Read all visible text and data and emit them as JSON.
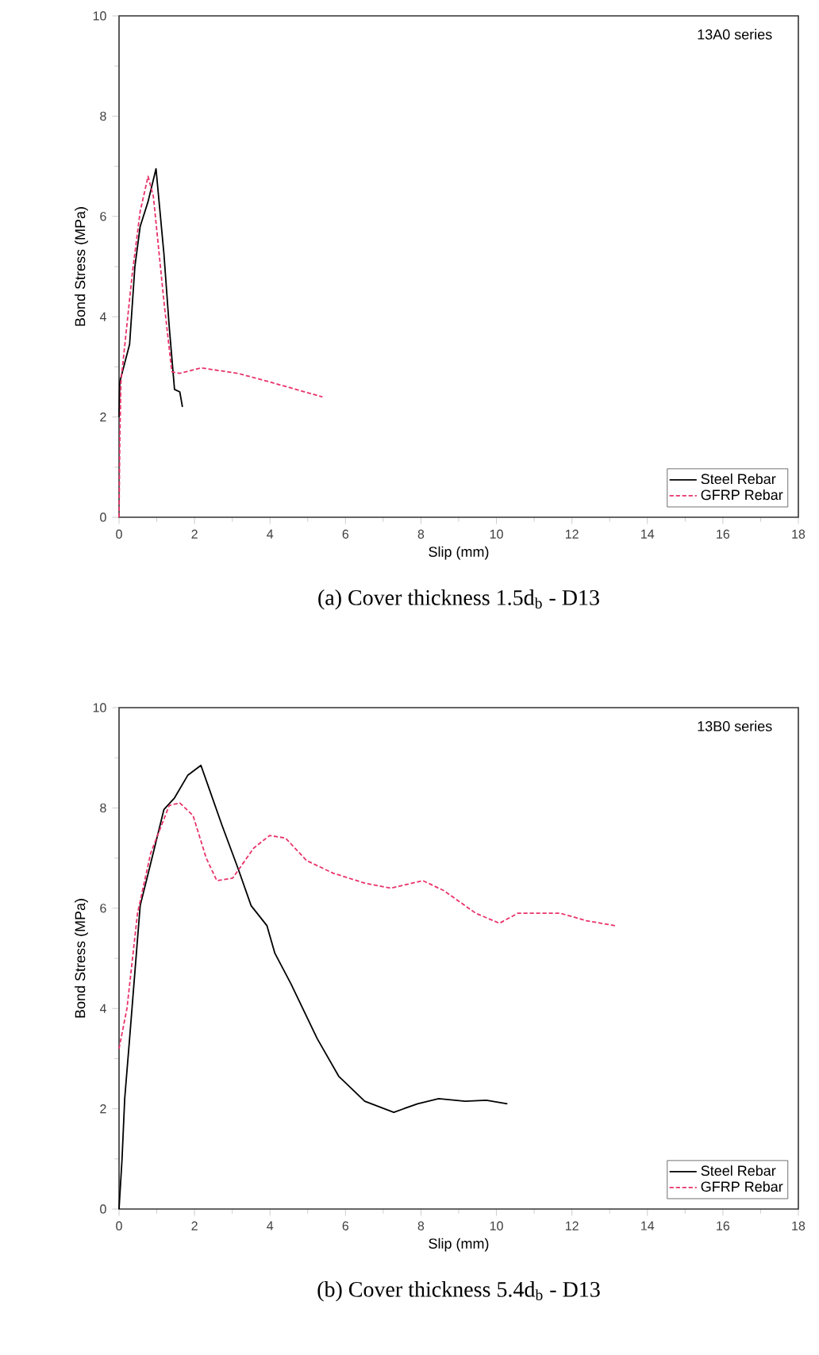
{
  "chart_data": [
    {
      "type": "line",
      "title": "(a) Cover thickness 1.5d$_{b}$ - D13",
      "xlabel": "Slip (mm)",
      "ylabel": "Bond Stress (MPa)",
      "annotations": [
        "13A0 series"
      ],
      "xlim": [
        0,
        18
      ],
      "ylim": [
        0,
        10
      ],
      "xticks": [
        0,
        2,
        4,
        6,
        8,
        10,
        12,
        14,
        16,
        18
      ],
      "yticks": [
        0,
        2,
        4,
        6,
        8,
        10
      ],
      "legend": "bottom right",
      "grid": false,
      "series": [
        {
          "name": "Steel Rebar",
          "color": "#000000",
          "line_style": "solid",
          "x": [
            0,
            0.02,
            0.28,
            0.42,
            0.56,
            0.77,
            0.98,
            1.19,
            1.33,
            1.47,
            1.61,
            1.68
          ],
          "values": [
            2.0,
            2.7,
            3.45,
            5.0,
            5.8,
            6.3,
            6.95,
            5.25,
            3.8,
            2.55,
            2.5,
            2.2
          ]
        },
        {
          "name": "GFRP Rebar",
          "color": "#e8336a",
          "line_style": "dashed",
          "x": [
            0,
            0.02,
            0.05,
            0.35,
            0.56,
            0.77,
            0.91,
            1.19,
            1.4,
            1.61,
            2.17,
            3.15,
            3.99,
            5.39
          ],
          "values": [
            0,
            1.5,
            2.7,
            4.85,
            6.1,
            6.8,
            6.4,
            4.3,
            2.9,
            2.87,
            2.98,
            2.87,
            2.7,
            2.4
          ]
        }
      ]
    },
    {
      "type": "line",
      "title": "(b) Cover thickness 5.4d$_{b}$ - D13",
      "xlabel": "Slip (mm)",
      "ylabel": "Bond Stress (MPa)",
      "annotations": [
        "13B0 series"
      ],
      "xlim": [
        0,
        18
      ],
      "ylim": [
        0,
        10
      ],
      "xticks": [
        0,
        2,
        4,
        6,
        8,
        10,
        12,
        14,
        16,
        18
      ],
      "yticks": [
        0,
        2,
        4,
        6,
        8,
        10
      ],
      "legend": "bottom right",
      "grid": false,
      "series": [
        {
          "name": "Steel Rebar",
          "color": "#000000",
          "line_style": "solid",
          "x": [
            0,
            0.08,
            0.15,
            0.28,
            0.56,
            0.84,
            1.19,
            1.47,
            1.82,
            2.17,
            2.38,
            2.73,
            3.15,
            3.5,
            3.92,
            4.13,
            4.55,
            5.25,
            5.82,
            6.51,
            7.28,
            7.91,
            8.47,
            9.17,
            9.73,
            10.29
          ],
          "values": [
            0,
            1.0,
            2.2,
            3.4,
            6.05,
            6.9,
            7.97,
            8.2,
            8.65,
            8.85,
            8.4,
            7.65,
            6.8,
            6.05,
            5.65,
            5.1,
            4.5,
            3.4,
            2.65,
            2.15,
            1.93,
            2.1,
            2.2,
            2.15,
            2.17,
            2.1
          ]
        },
        {
          "name": "GFRP Rebar",
          "color": "#e8336a",
          "line_style": "dashed",
          "x": [
            0,
            0.21,
            0.49,
            0.84,
            1.33,
            1.61,
            1.96,
            2.31,
            2.59,
            3.01,
            3.57,
            3.99,
            4.41,
            4.97,
            5.67,
            6.51,
            7.21,
            8.05,
            8.61,
            9.45,
            10.08,
            10.57,
            11.69,
            12.39,
            13.15
          ],
          "values": [
            3.2,
            4.0,
            5.9,
            7.1,
            8.05,
            8.1,
            7.85,
            7.0,
            6.55,
            6.6,
            7.2,
            7.45,
            7.4,
            6.95,
            6.7,
            6.5,
            6.4,
            6.55,
            6.35,
            5.9,
            5.7,
            5.9,
            5.9,
            5.75,
            5.65
          ]
        }
      ]
    }
  ]
}
